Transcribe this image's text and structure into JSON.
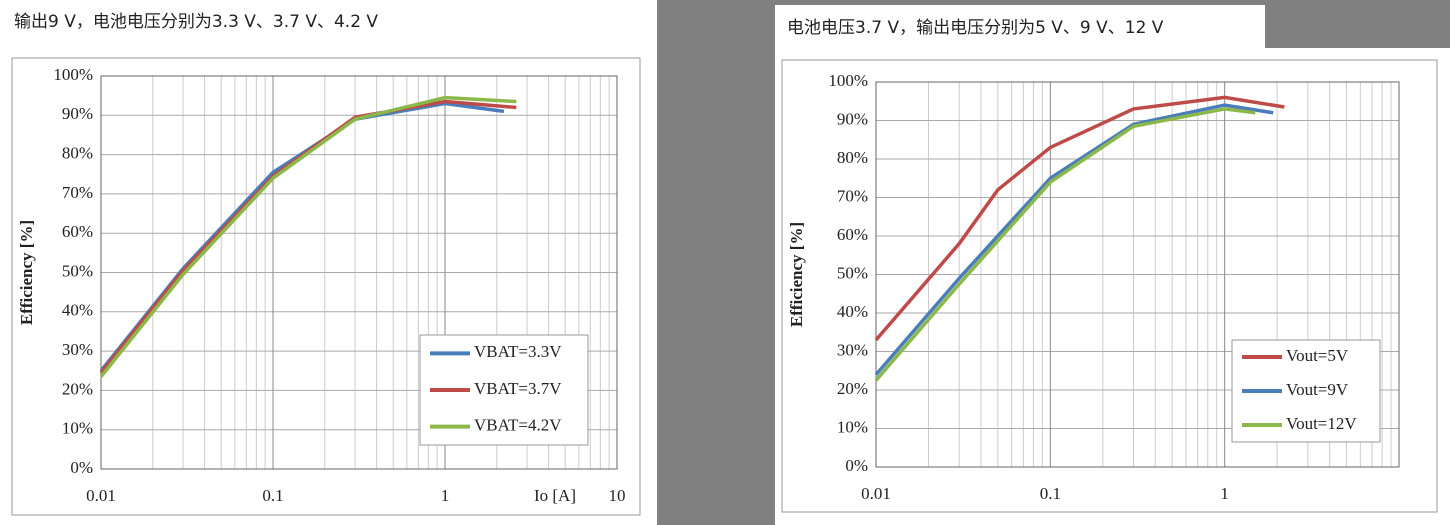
{
  "chart_data": [
    {
      "type": "line",
      "title": "输出9 V，电池电压分别为3.3 V、3.7 V、4.2 V",
      "xlabel": "Io [A]",
      "ylabel": "Efficiency [%]",
      "xscale": "log",
      "grid": true,
      "legend": "lower right",
      "xlim": [
        0.01,
        10
      ],
      "xticks": [
        0.01,
        0.1,
        1,
        10
      ],
      "ylim": [
        0,
        100
      ],
      "yticks": [
        {
          "value": 0,
          "label": "0%"
        },
        {
          "value": 10,
          "label": "10%"
        },
        {
          "value": 20,
          "label": "20%"
        },
        {
          "value": 30,
          "label": "30%"
        },
        {
          "value": 40,
          "label": "40%"
        },
        {
          "value": 50,
          "label": "50%"
        },
        {
          "value": 60,
          "label": "60%"
        },
        {
          "value": 70,
          "label": "70%"
        },
        {
          "value": 80,
          "label": "80%"
        },
        {
          "value": 90,
          "label": "90%"
        },
        {
          "value": 100,
          "label": "100%"
        }
      ],
      "series": [
        {
          "name": "VBAT=3.3V",
          "color": "#4a7ebb",
          "x": [
            0.01,
            0.03,
            0.1,
            0.3,
            1,
            2.2
          ],
          "values": [
            25,
            51,
            75.5,
            89,
            93,
            91
          ]
        },
        {
          "name": "VBAT=3.7V",
          "color": "#be4b48",
          "x": [
            0.01,
            0.03,
            0.1,
            0.3,
            1,
            2.6
          ],
          "values": [
            24.5,
            50.5,
            74.5,
            89.5,
            93.5,
            92
          ]
        },
        {
          "name": "VBAT=4.2V",
          "color": "#8cb84a",
          "x": [
            0.01,
            0.03,
            0.1,
            0.3,
            1,
            2.6
          ],
          "values": [
            23.5,
            49.5,
            74,
            89,
            94.5,
            93.5
          ]
        }
      ]
    },
    {
      "type": "line",
      "title": "电池电压3.7 V，输出电压分别为5 V、9 V、12 V",
      "ylabel": "Efficiency [%]",
      "xscale": "log",
      "grid": true,
      "legend": "lower right",
      "xlim": [
        0.01,
        10
      ],
      "xticks": [
        0.01,
        0.1,
        1
      ],
      "ylim": [
        0,
        100
      ],
      "yticks": [
        {
          "value": 0,
          "label": "0%"
        },
        {
          "value": 10,
          "label": "10%"
        },
        {
          "value": 20,
          "label": "20%"
        },
        {
          "value": 30,
          "label": "30%"
        },
        {
          "value": 40,
          "label": "40%"
        },
        {
          "value": 50,
          "label": "50%"
        },
        {
          "value": 60,
          "label": "60%"
        },
        {
          "value": 70,
          "label": "70%"
        },
        {
          "value": 80,
          "label": "80%"
        },
        {
          "value": 90,
          "label": "90%"
        },
        {
          "value": 100,
          "label": "100%"
        }
      ],
      "series": [
        {
          "name": "Vout=5V",
          "color": "#be4b48",
          "x": [
            0.01,
            0.03,
            0.05,
            0.1,
            0.3,
            1,
            2.2
          ],
          "values": [
            33,
            58,
            72,
            83,
            93,
            96,
            93.5
          ]
        },
        {
          "name": "Vout=9V",
          "color": "#4a7ebb",
          "x": [
            0.01,
            0.03,
            0.1,
            0.3,
            1,
            1.9
          ],
          "values": [
            24,
            49,
            75,
            89,
            94,
            92
          ]
        },
        {
          "name": "Vout=12V",
          "color": "#8cb84a",
          "x": [
            0.01,
            0.03,
            0.1,
            0.3,
            1,
            1.5
          ],
          "values": [
            22.5,
            47.5,
            74,
            88.5,
            93,
            92
          ]
        }
      ]
    }
  ]
}
